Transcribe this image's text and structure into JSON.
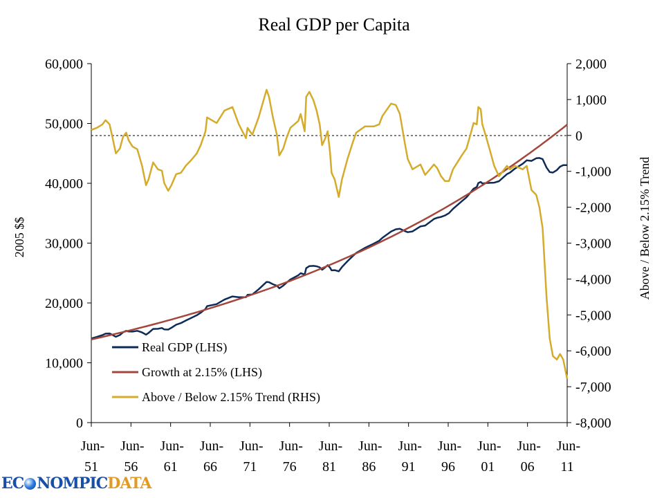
{
  "chart_data": {
    "type": "line",
    "title": "Real GDP per Capita",
    "ylabel_left": "2005 $$",
    "ylabel_right": "Above / Below 2.15% Trend",
    "ylim_left": [
      0,
      60000
    ],
    "ylim_right": [
      -8000,
      2000
    ],
    "yticks_left": [
      "0",
      "10,000",
      "20,000",
      "30,000",
      "40,000",
      "50,000",
      "60,000"
    ],
    "yticks_right": [
      "-8,000",
      "-7,000",
      "-6,000",
      "-5,000",
      "-4,000",
      "-3,000",
      "-2,000",
      "-1,000",
      "0",
      "1,000",
      "2,000"
    ],
    "xlim": [
      1951.5,
      2011.5
    ],
    "xticks": [
      [
        "Jun-",
        "51"
      ],
      [
        "Jun-",
        "56"
      ],
      [
        "Jun-",
        "61"
      ],
      [
        "Jun-",
        "66"
      ],
      [
        "Jun-",
        "71"
      ],
      [
        "Jun-",
        "76"
      ],
      [
        "Jun-",
        "81"
      ],
      [
        "Jun-",
        "86"
      ],
      [
        "Jun-",
        "91"
      ],
      [
        "Jun-",
        "96"
      ],
      [
        "Jun-",
        "01"
      ],
      [
        "Jun-",
        "06"
      ],
      [
        "Jun-",
        "11"
      ]
    ],
    "reference_line_right": 0,
    "legend_position": "bottom-left",
    "series": [
      {
        "name": "Real GDP (LHS)",
        "axis": "left",
        "color": "#0d2b57",
        "derived": "trend + gap"
      },
      {
        "name": "Growth at 2.15% (LHS)",
        "axis": "left",
        "color": "#a3473d",
        "growth_rate": 0.0215,
        "x": [
          1951.5,
          1956.5,
          1961.5,
          1966.5,
          1971.5,
          1976.5,
          1981.5,
          1986.5,
          1991.5,
          1996.5,
          2001.5,
          2006.5,
          2011.5
        ],
        "values": [
          13900,
          15466,
          17207,
          19145,
          21300,
          23699,
          26368,
          29337,
          32640,
          36316,
          40405,
          44954,
          50017
        ]
      },
      {
        "name": "Above / Below 2.15% Trend (RHS)",
        "axis": "right",
        "color": "#d4ab2a",
        "x": [
          1951.5,
          1952.2,
          1952.9,
          1953.3,
          1953.8,
          1954.1,
          1954.6,
          1955.1,
          1955.5,
          1955.9,
          1956.2,
          1956.7,
          1957.3,
          1957.9,
          1958.4,
          1958.7,
          1959.3,
          1959.9,
          1960.4,
          1960.7,
          1961.2,
          1961.6,
          1962.2,
          1962.8,
          1963.4,
          1964.0,
          1964.8,
          1965.3,
          1965.9,
          1966.1,
          1967.3,
          1968.3,
          1969.3,
          1970.1,
          1971.0,
          1971.2,
          1971.8,
          1972.6,
          1973.6,
          1973.9,
          1974.4,
          1974.9,
          1975.2,
          1975.7,
          1976.1,
          1976.6,
          1977.6,
          1977.9,
          1978.4,
          1978.6,
          1979.0,
          1979.5,
          1979.9,
          1980.3,
          1980.6,
          1981.0,
          1981.3,
          1981.6,
          1981.8,
          1982.2,
          1982.7,
          1983.1,
          1983.8,
          1984.5,
          1984.9,
          1986.0,
          1987.1,
          1987.8,
          1988.2,
          1989.3,
          1989.9,
          1990.4,
          1991.0,
          1991.4,
          1992.0,
          1993.0,
          1993.6,
          1994.2,
          1994.7,
          1995.1,
          1995.6,
          1996.1,
          1996.6,
          1997.1,
          1998.2,
          1998.8,
          1999.3,
          1999.7,
          2000.1,
          2000.3,
          2000.6,
          2000.8,
          2001.2,
          2001.7,
          2002.3,
          2002.9,
          2003.9,
          2004.3,
          2004.9,
          2005.9,
          2006.4,
          2007.0,
          2007.6,
          2008.0,
          2008.4,
          2008.9,
          2009.3,
          2009.7,
          2010.2,
          2010.6,
          2011.0,
          2011.5
        ],
        "values": [
          154,
          212,
          308,
          424,
          308,
          19,
          -501,
          -366,
          -39,
          77,
          -135,
          -308,
          -385,
          -848,
          -1387,
          -1233,
          -751,
          -944,
          -983,
          -1329,
          -1541,
          -1387,
          -1079,
          -1040,
          -848,
          -713,
          -501,
          -270,
          116,
          501,
          347,
          694,
          790,
          308,
          -77,
          212,
          19,
          501,
          1272,
          1079,
          501,
          19,
          -559,
          -366,
          -77,
          212,
          405,
          597,
          116,
          1079,
          1214,
          983,
          694,
          308,
          -270,
          -77,
          116,
          -462,
          -1040,
          -1233,
          -1715,
          -1233,
          -655,
          -173,
          77,
          250,
          250,
          308,
          539,
          886,
          848,
          597,
          -173,
          -655,
          -944,
          -809,
          -1098,
          -944,
          -809,
          -906,
          -1137,
          -1272,
          -1272,
          -944,
          -559,
          -366,
          19,
          347,
          308,
          790,
          732,
          308,
          19,
          -366,
          -848,
          -1137,
          -848,
          -944,
          -848,
          -944,
          -848,
          -1522,
          -1657,
          -2004,
          -2582,
          -4509,
          -5665,
          -6146,
          -6243,
          -6089,
          -6243,
          -6782
        ]
      }
    ]
  },
  "logo": {
    "text_a": "EC",
    "text_b": "NOMPIC",
    "text_c": "DATA"
  }
}
